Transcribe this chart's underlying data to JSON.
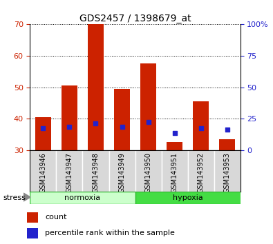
{
  "title": "GDS2457 / 1398679_at",
  "samples": [
    "GSM143946",
    "GSM143947",
    "GSM143948",
    "GSM143949",
    "GSM143950",
    "GSM143951",
    "GSM143952",
    "GSM143953"
  ],
  "counts": [
    40.5,
    50.5,
    70.0,
    49.5,
    57.5,
    32.5,
    45.5,
    33.5
  ],
  "percentile_ranks": [
    37.0,
    37.5,
    38.5,
    37.5,
    39.0,
    35.5,
    37.0,
    36.5
  ],
  "bar_bottom": 30,
  "ylim": [
    30,
    70
  ],
  "yticks": [
    30,
    40,
    50,
    60,
    70
  ],
  "right_yticks": [
    0,
    25,
    50,
    75,
    100
  ],
  "bar_color": "#CC2200",
  "dot_color": "#2222CC",
  "normoxia_color": "#CCFFCC",
  "hypoxia_color": "#44DD44",
  "normoxia_label": "normoxia",
  "hypoxia_label": "hypoxia",
  "stress_label": "stress",
  "legend_count": "count",
  "legend_percentile": "percentile rank within the sample",
  "title_fontsize": 10,
  "axis_label_color_left": "#CC2200",
  "axis_label_color_right": "#2222CC",
  "bar_width": 0.6,
  "background_color": "#FFFFFF",
  "plot_bg_color": "#FFFFFF",
  "label_box_color": "#D8D8D8",
  "tick_fontsize": 8,
  "sample_fontsize": 7
}
